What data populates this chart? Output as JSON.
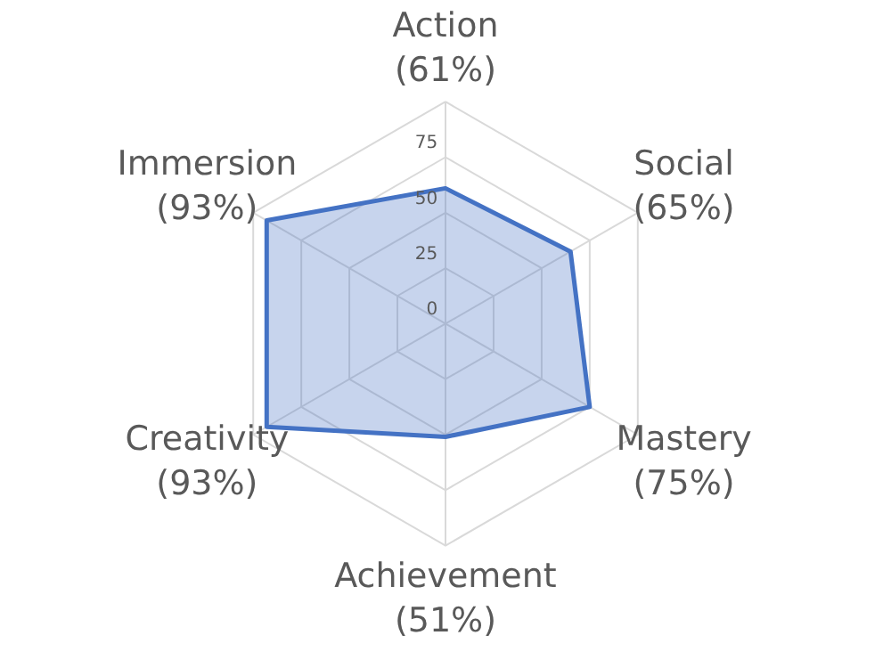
{
  "chart_data": {
    "type": "radar",
    "categories": [
      "Action\n(61%)",
      "Social\n(65%)",
      "Mastery\n(75%)",
      "Achievement\n(51%)",
      "Creativity\n(93%)",
      "Immersion\n(93%)"
    ],
    "series": [
      {
        "color": "#4472c4",
        "values": [
          61,
          65,
          75,
          51,
          93,
          93
        ]
      }
    ],
    "ylim": [
      0,
      100
    ],
    "yticks": [
      0,
      25,
      50,
      75
    ],
    "grid": true
  }
}
